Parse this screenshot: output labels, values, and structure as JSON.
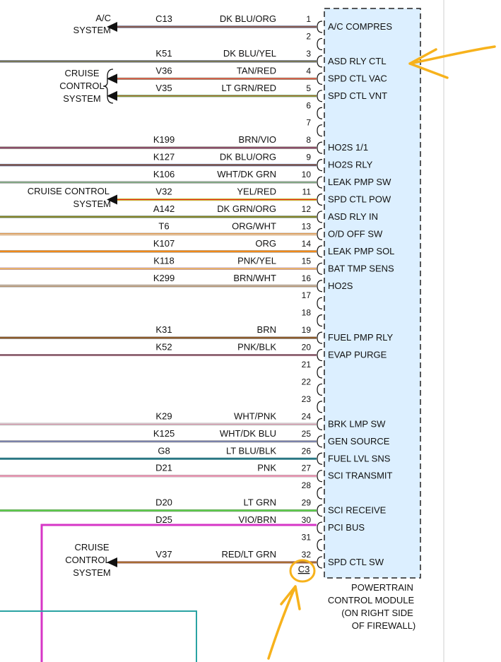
{
  "colors": {
    "module_fill": "#dcefff",
    "highlight": "#f7b21c",
    "ink": "#111111",
    "pci_bus": "#d636c6",
    "teal_box": "#2aa3a3"
  },
  "systems": {
    "ac": [
      "A/C",
      "SYSTEM"
    ],
    "cruise_top": [
      "CRUISE",
      "CONTROL",
      "SYSTEM"
    ],
    "cruise_mid": [
      "CRUISE CONTROL",
      "SYSTEM"
    ],
    "cruise_bottom": [
      "CRUISE",
      "CONTROL",
      "SYSTEM"
    ]
  },
  "pins": [
    {
      "pin": "1",
      "circuit": "C13",
      "wire": "DK BLU/ORG",
      "func": "A/C COMPRES",
      "colors": [
        "#1e2f86",
        "#f08a1c"
      ],
      "dir": "out"
    },
    {
      "pin": "2",
      "circuit": "",
      "wire": "",
      "func": "",
      "colors": [],
      "dir": ""
    },
    {
      "pin": "3",
      "circuit": "K51",
      "wire": "DK BLU/YEL",
      "func": "ASD RLY CTL",
      "colors": [
        "#1e2f86",
        "#e8d21a"
      ],
      "dir": ""
    },
    {
      "pin": "4",
      "circuit": "V36",
      "wire": "TAN/RED",
      "func": "SPD CTL VAC",
      "colors": [
        "#c9a77a",
        "#e02020"
      ],
      "dir": "out"
    },
    {
      "pin": "5",
      "circuit": "V35",
      "wire": "LT GRN/RED",
      "func": "SPD CTL VNT",
      "colors": [
        "#5cd04a",
        "#e02020"
      ],
      "dir": "out"
    },
    {
      "pin": "6",
      "circuit": "",
      "wire": "",
      "func": "",
      "colors": [],
      "dir": ""
    },
    {
      "pin": "7",
      "circuit": "",
      "wire": "",
      "func": "",
      "colors": [],
      "dir": ""
    },
    {
      "pin": "8",
      "circuit": "K199",
      "wire": "BRN/VIO",
      "func": "HO2S 1/1",
      "colors": [
        "#8b5a2b",
        "#8a3cc2"
      ],
      "dir": ""
    },
    {
      "pin": "9",
      "circuit": "K127",
      "wire": "DK BLU/ORG",
      "func": "HO2S RLY",
      "colors": [
        "#1e2f86",
        "#f08a1c"
      ],
      "dir": ""
    },
    {
      "pin": "10",
      "circuit": "K106",
      "wire": "WHT/DK GRN",
      "func": "LEAK PMP SW",
      "colors": [
        "#c8c8c8",
        "#2e7d32"
      ],
      "dir": ""
    },
    {
      "pin": "11",
      "circuit": "V32",
      "wire": "YEL/RED",
      "func": "SPD CTL POW",
      "colors": [
        "#f0d21a",
        "#e02020"
      ],
      "dir": "out"
    },
    {
      "pin": "12",
      "circuit": "A142",
      "wire": "DK GRN/ORG",
      "func": "ASD RLY IN",
      "colors": [
        "#2e7d32",
        "#f08a1c"
      ],
      "dir": ""
    },
    {
      "pin": "13",
      "circuit": "T6",
      "wire": "ORG/WHT",
      "func": "O/D OFF SW",
      "colors": [
        "#f08a1c",
        "#ffffff"
      ],
      "dir": ""
    },
    {
      "pin": "14",
      "circuit": "K107",
      "wire": "ORG",
      "func": "LEAK PMP SOL",
      "colors": [
        "#f08a1c"
      ],
      "dir": ""
    },
    {
      "pin": "15",
      "circuit": "K118",
      "wire": "PNK/YEL",
      "func": "BAT TMP SENS",
      "colors": [
        "#f29ab8",
        "#e8d21a"
      ],
      "dir": ""
    },
    {
      "pin": "16",
      "circuit": "K299",
      "wire": "BRN/WHT",
      "func": "HO2S",
      "colors": [
        "#8b5a2b",
        "#ffffff"
      ],
      "dir": ""
    },
    {
      "pin": "17",
      "circuit": "",
      "wire": "",
      "func": "",
      "colors": [],
      "dir": ""
    },
    {
      "pin": "18",
      "circuit": "",
      "wire": "",
      "func": "",
      "colors": [],
      "dir": ""
    },
    {
      "pin": "19",
      "circuit": "K31",
      "wire": "BRN",
      "func": "FUEL PMP RLY",
      "colors": [
        "#8b5a2b"
      ],
      "dir": ""
    },
    {
      "pin": "20",
      "circuit": "K52",
      "wire": "PNK/BLK",
      "func": "EVAP PURGE",
      "colors": [
        "#f29ab8",
        "#222222"
      ],
      "dir": ""
    },
    {
      "pin": "21",
      "circuit": "",
      "wire": "",
      "func": "",
      "colors": [],
      "dir": ""
    },
    {
      "pin": "22",
      "circuit": "",
      "wire": "",
      "func": "",
      "colors": [],
      "dir": ""
    },
    {
      "pin": "23",
      "circuit": "",
      "wire": "",
      "func": "",
      "colors": [],
      "dir": ""
    },
    {
      "pin": "24",
      "circuit": "K29",
      "wire": "WHT/PNK",
      "func": "BRK LMP SW",
      "colors": [
        "#d8d8d8",
        "#f29ab8"
      ],
      "dir": ""
    },
    {
      "pin": "25",
      "circuit": "K125",
      "wire": "WHT/DK BLU",
      "func": "GEN SOURCE",
      "colors": [
        "#c8c8c8",
        "#1e2f86"
      ],
      "dir": ""
    },
    {
      "pin": "26",
      "circuit": "G8",
      "wire": "LT BLU/BLK",
      "func": "FUEL LVL SNS",
      "colors": [
        "#30c8e0",
        "#222222"
      ],
      "dir": ""
    },
    {
      "pin": "27",
      "circuit": "D21",
      "wire": "PNK",
      "func": "SCI TRANSMIT",
      "colors": [
        "#f29ab8"
      ],
      "dir": ""
    },
    {
      "pin": "28",
      "circuit": "",
      "wire": "",
      "func": "",
      "colors": [],
      "dir": ""
    },
    {
      "pin": "29",
      "circuit": "D20",
      "wire": "LT GRN",
      "func": "SCI RECEIVE",
      "colors": [
        "#5cd04a"
      ],
      "dir": ""
    },
    {
      "pin": "30",
      "circuit": "D25",
      "wire": "VIO/BRN",
      "func": "PCI BUS",
      "colors": [
        "#d636c6",
        "#8b5a2b"
      ],
      "dir": "bus"
    },
    {
      "pin": "31",
      "circuit": "",
      "wire": "",
      "func": "",
      "colors": [],
      "dir": ""
    },
    {
      "pin": "32",
      "circuit": "V37",
      "wire": "RED/LT GRN",
      "func": "SPD CTL SW",
      "colors": [
        "#e02020",
        "#5cd04a"
      ],
      "dir": "out"
    }
  ],
  "connector_id": "C3",
  "module": {
    "lines": [
      "POWERTRAIN",
      "CONTROL MODULE",
      "(ON RIGHT SIDE",
      "OF FIREWALL)"
    ]
  }
}
